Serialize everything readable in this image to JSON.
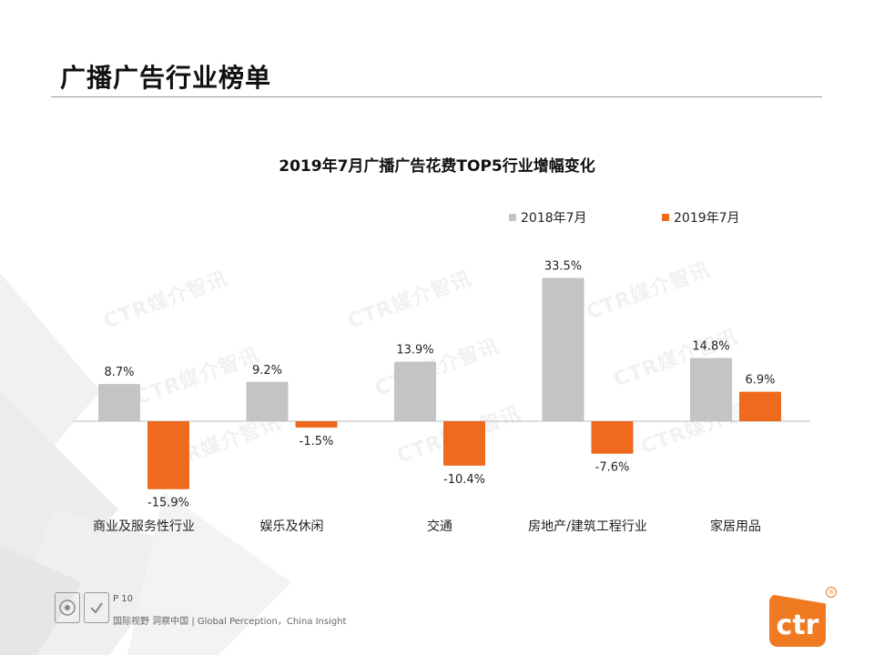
{
  "page": {
    "title": "广播广告行业榜单",
    "page_number": "P 10",
    "tagline": "国际视野 洞察中国 | Global Perception，China Insight",
    "watermark_text": "CTR媒介智讯",
    "brand_logo_text": "ctr",
    "brand_mark": "®",
    "cert_icons": [
      "sgs-cert-icon",
      "ukas-cert-icon"
    ]
  },
  "colors": {
    "series_2018": "#c4c4c4",
    "series_2019": "#ee6a1e",
    "brand": "#f07a22",
    "axis": "#bdbdbd"
  },
  "chart_data": {
    "type": "bar",
    "title": "2019年7月广播广告花费TOP5行业增幅变化",
    "categories": [
      "商业及服务性行业",
      "娱乐及休闲",
      "交通",
      "房地产/建筑工程行业",
      "家居用品"
    ],
    "series": [
      {
        "name": "2018年7月",
        "values": [
          8.7,
          9.2,
          13.9,
          33.5,
          14.8
        ],
        "labels": [
          "8.7%",
          "9.2%",
          "13.9%",
          "33.5%",
          "14.8%"
        ]
      },
      {
        "name": "2019年7月",
        "values": [
          -15.9,
          -1.5,
          -10.4,
          -7.6,
          6.9
        ],
        "labels": [
          "-15.9%",
          "-1.5%",
          "-10.4%",
          "-7.6%",
          "6.9%"
        ]
      }
    ],
    "unit": "%",
    "ylim": [
      -17,
      36
    ],
    "grid": false,
    "legend_position": "top-right",
    "xlabel": "",
    "ylabel": ""
  }
}
